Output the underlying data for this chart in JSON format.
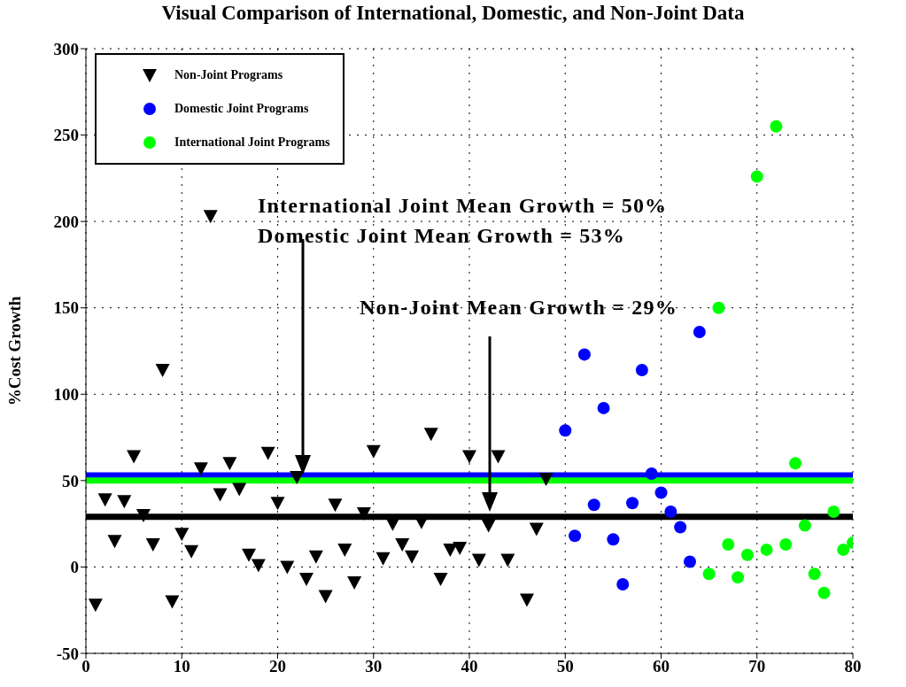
{
  "chart_data": {
    "type": "scatter",
    "title": "Visual Comparison of International, Domestic, and Non-Joint Data",
    "ylabel": "%Cost Growth",
    "xlim": [
      0,
      80
    ],
    "xticks": [
      0,
      10,
      20,
      30,
      40,
      50,
      60,
      70,
      80
    ],
    "ylim": [
      -50,
      300
    ],
    "yticks": [
      -50,
      0,
      50,
      100,
      150,
      200,
      250,
      300
    ],
    "grid": true,
    "legend": "top left",
    "series": [
      {
        "name": "Non-Joint Programs",
        "color": "#000000",
        "marker": "triangle",
        "x": [
          1,
          2,
          3,
          4,
          5,
          6,
          7,
          8,
          9,
          10,
          11,
          12,
          13,
          14,
          15,
          16,
          17,
          18,
          19,
          20,
          21,
          22,
          23,
          24,
          25,
          26,
          27,
          28,
          29,
          30,
          31,
          32,
          33,
          34,
          35,
          36,
          37,
          38,
          39,
          40,
          41,
          42,
          43,
          44,
          46,
          47,
          48
        ],
        "values": [
          -22,
          39,
          15,
          38,
          64,
          30,
          13,
          114,
          -20,
          19,
          9,
          57,
          203,
          42,
          60,
          45,
          7,
          1,
          66,
          37,
          0,
          52,
          -7,
          6,
          -17,
          36,
          10,
          -9,
          31,
          67,
          5,
          25,
          13,
          6,
          26,
          77,
          -7,
          10,
          11,
          64,
          4,
          24,
          64,
          4,
          -19,
          22,
          51
        ]
      },
      {
        "name": "Domestic Joint Programs",
        "color": "#0000ff",
        "marker": "circle",
        "x": [
          50,
          51,
          52,
          53,
          54,
          55,
          56,
          57,
          58,
          59,
          60,
          61,
          62,
          63,
          64
        ],
        "values": [
          79,
          18,
          123,
          36,
          92,
          16,
          -10,
          37,
          114,
          54,
          43,
          32,
          23,
          3,
          136
        ]
      },
      {
        "name": "International Joint Programs",
        "color": "#00ff00",
        "marker": "circle",
        "x": [
          65,
          66,
          67,
          68,
          69,
          70,
          71,
          72,
          73,
          74,
          75,
          76,
          77,
          78,
          79,
          80
        ],
        "values": [
          -4,
          150,
          13,
          -6,
          7,
          226,
          10,
          255,
          13,
          60,
          24,
          -4,
          -15,
          32,
          10,
          14
        ]
      }
    ],
    "ref_lines": [
      {
        "axis": "y",
        "value": 53,
        "color": "#0000ff"
      },
      {
        "axis": "y",
        "value": 50,
        "color": "#00ff00"
      },
      {
        "axis": "y",
        "value": 29,
        "color": "#000000"
      }
    ],
    "annotations": [
      "International Joint Mean Growth = 50%",
      "Domestic Joint Mean Growth = 53%",
      "Non-Joint Mean Growth = 29%"
    ]
  }
}
